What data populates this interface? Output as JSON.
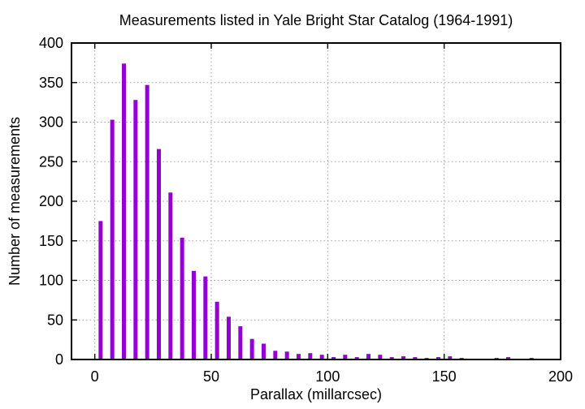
{
  "figure": {
    "title": "Measurements listed in Yale Bright Star Catalog (1964-1991)",
    "xlabel": "Parallax (millarcsec)",
    "ylabel": "Number of measurements"
  },
  "chart_data": {
    "type": "bar",
    "title": "Measurements listed in Yale Bright Star Catalog (1964-1991)",
    "xlabel": "Parallax (millarcsec)",
    "ylabel": "Number of measurements",
    "xlim": [
      -10,
      200
    ],
    "ylim": [
      0,
      400
    ],
    "xticks": [
      0,
      50,
      100,
      150,
      200
    ],
    "yticks": [
      0,
      50,
      100,
      150,
      200,
      250,
      300,
      350,
      400
    ],
    "grid": true,
    "legend_position": "none",
    "bar_color": "#9400D3",
    "bin_width": 5,
    "x": [
      2.5,
      7.5,
      12.5,
      17.5,
      22.5,
      27.5,
      32.5,
      37.5,
      42.5,
      47.5,
      52.5,
      57.5,
      62.5,
      67.5,
      72.5,
      77.5,
      82.5,
      87.5,
      92.5,
      97.5,
      102.5,
      107.5,
      112.5,
      117.5,
      122.5,
      127.5,
      132.5,
      137.5,
      142.5,
      147.5,
      152.5,
      157.5,
      162.5,
      167.5,
      172.5,
      177.5,
      182.5,
      187.5,
      192.5,
      197.5
    ],
    "values": [
      175,
      303,
      374,
      328,
      347,
      266,
      211,
      154,
      112,
      105,
      73,
      54,
      42,
      26,
      20,
      11,
      10,
      7,
      8,
      6,
      3,
      6,
      3,
      7,
      6,
      3,
      4,
      3,
      2,
      3,
      4,
      2,
      0,
      0,
      2,
      3,
      0,
      2,
      0,
      1
    ]
  }
}
